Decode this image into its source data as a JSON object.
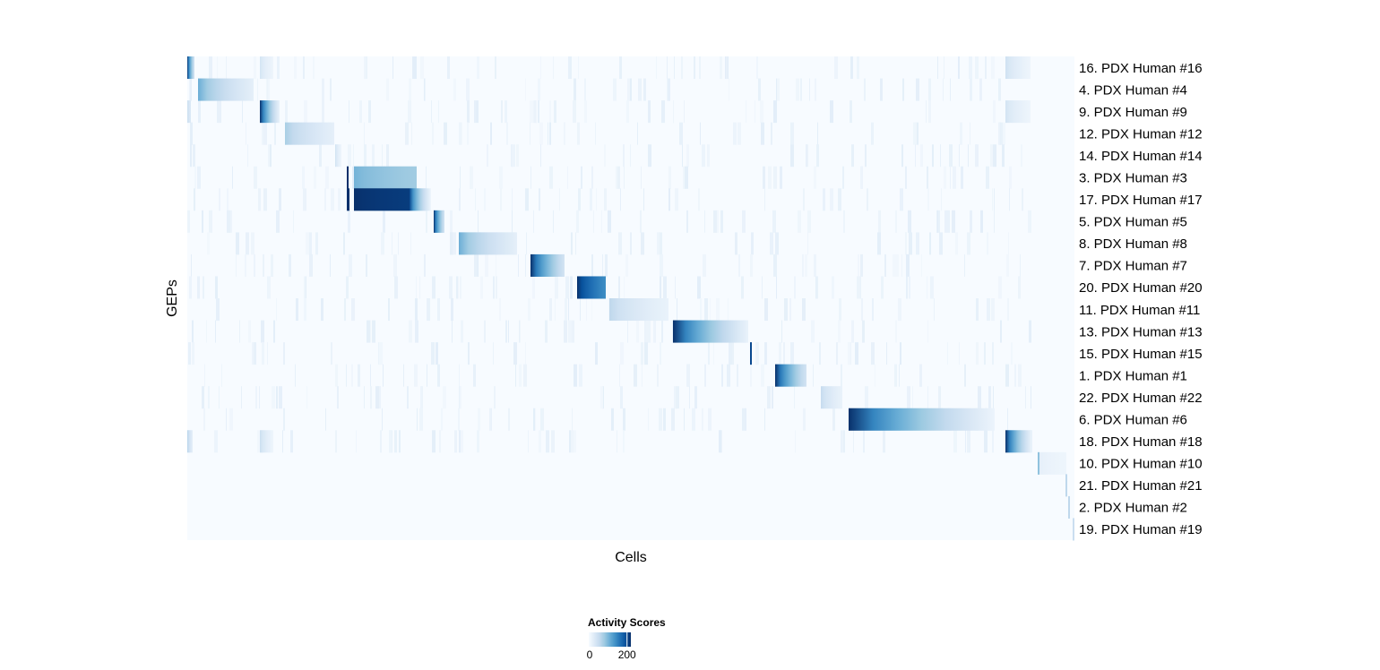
{
  "chart_data": {
    "type": "heatmap",
    "xlabel": "Cells",
    "ylabel": "GEPs",
    "n_cells": 990,
    "row_labels": [
      "16. PDX Human #16",
      "4. PDX Human #4",
      "9. PDX Human #9",
      "12. PDX Human #12",
      "14. PDX Human #14",
      "3. PDX Human #3",
      "17. PDX Human #17",
      "5. PDX Human #5",
      "8. PDX Human #8",
      "7. PDX Human #7",
      "20. PDX Human #20",
      "11. PDX Human #11",
      "13. PDX Human #13",
      "15. PDX Human #15",
      "1. PDX Human #1",
      "22. PDX Human #22",
      "6. PDX Human #6",
      "18. PDX Human #18",
      "10. PDX Human #10",
      "21. PDX Human #21",
      "2. PDX Human #2",
      "19. PDX Human #19"
    ],
    "blocks_note_units": "cell index ranges with activity score at start and end",
    "blocks": [
      {
        "row": 0,
        "start": 0,
        "end": 8,
        "from": 220,
        "to": 40
      },
      {
        "row": 0,
        "start": 81,
        "end": 96,
        "from": 40,
        "to": 10
      },
      {
        "row": 0,
        "start": 913,
        "end": 941,
        "from": 45,
        "to": 10
      },
      {
        "row": 1,
        "start": 12,
        "end": 74,
        "from": 110,
        "to": 20
      },
      {
        "row": 2,
        "start": 0,
        "end": 4,
        "from": 50,
        "to": 30
      },
      {
        "row": 2,
        "start": 81,
        "end": 103,
        "from": 220,
        "to": 15
      },
      {
        "row": 2,
        "start": 913,
        "end": 941,
        "from": 40,
        "to": 10
      },
      {
        "row": 3,
        "start": 109,
        "end": 164,
        "from": 75,
        "to": 20
      },
      {
        "row": 4,
        "start": 165,
        "end": 172,
        "from": 45,
        "to": 10
      },
      {
        "row": 5,
        "start": 178,
        "end": 180,
        "from": 220,
        "to": 220
      },
      {
        "row": 5,
        "start": 186,
        "end": 256,
        "from": 105,
        "to": 80
      },
      {
        "row": 6,
        "start": 178,
        "end": 181,
        "from": 220,
        "to": 220
      },
      {
        "row": 6,
        "start": 186,
        "end": 248,
        "from": 220,
        "to": 210
      },
      {
        "row": 6,
        "start": 248,
        "end": 272,
        "from": 200,
        "to": 10
      },
      {
        "row": 7,
        "start": 275,
        "end": 287,
        "from": 220,
        "to": 40
      },
      {
        "row": 8,
        "start": 303,
        "end": 368,
        "from": 110,
        "to": 20
      },
      {
        "row": 9,
        "start": 383,
        "end": 421,
        "from": 220,
        "to": 40
      },
      {
        "row": 10,
        "start": 435,
        "end": 467,
        "from": 220,
        "to": 140
      },
      {
        "row": 11,
        "start": 471,
        "end": 537,
        "from": 60,
        "to": 15
      },
      {
        "row": 12,
        "start": 542,
        "end": 626,
        "from": 220,
        "to": 15
      },
      {
        "row": 13,
        "start": 628,
        "end": 630,
        "from": 200,
        "to": 200
      },
      {
        "row": 14,
        "start": 656,
        "end": 691,
        "from": 220,
        "to": 40
      },
      {
        "row": 15,
        "start": 707,
        "end": 731,
        "from": 55,
        "to": 15
      },
      {
        "row": 16,
        "start": 738,
        "end": 901,
        "from": 220,
        "to": 12
      },
      {
        "row": 17,
        "start": 0,
        "end": 6,
        "from": 70,
        "to": 20
      },
      {
        "row": 17,
        "start": 81,
        "end": 96,
        "from": 50,
        "to": 10
      },
      {
        "row": 17,
        "start": 913,
        "end": 941,
        "from": 220,
        "to": 20
      },
      {
        "row": 18,
        "start": 949,
        "end": 951,
        "from": 90,
        "to": 90
      },
      {
        "row": 18,
        "start": 951,
        "end": 981,
        "from": 20,
        "to": 10
      },
      {
        "row": 19,
        "start": 980,
        "end": 982,
        "from": 60,
        "to": 60
      },
      {
        "row": 20,
        "start": 983,
        "end": 985,
        "from": 60,
        "to": 60
      },
      {
        "row": 21,
        "start": 988,
        "end": 990,
        "from": 50,
        "to": 50
      }
    ],
    "colorscale": {
      "name": "Blues",
      "title": "Activity Scores",
      "range": [
        0,
        220
      ],
      "ticks": [
        "0",
        "200"
      ],
      "colors": [
        "#f7fbff",
        "#deebf7",
        "#c6dbef",
        "#9ecae1",
        "#6baed6",
        "#4292c6",
        "#2171b5",
        "#08519c",
        "#08306b"
      ]
    },
    "grid": false,
    "legend_placement": "bottom"
  }
}
